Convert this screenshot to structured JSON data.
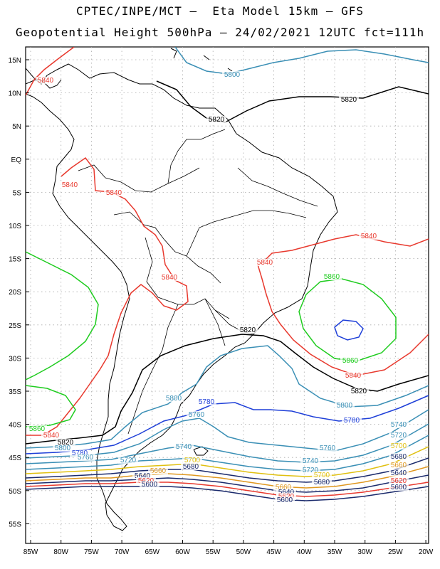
{
  "title_line1": "CPTEC/INPE/MCT –  Eta Model 15km – GFS",
  "title_line2": "Geopotential Height 500hPa – 24/02/2021 12UTC fct=111h",
  "lat_labels": [
    "15N",
    "10N",
    "5N",
    "EQ",
    "5S",
    "10S",
    "15S",
    "20S",
    "25S",
    "30S",
    "35S",
    "40S",
    "45S",
    "50S",
    "55S"
  ],
  "lon_labels": [
    "85W",
    "80W",
    "75W",
    "70W",
    "65W",
    "60W",
    "55W",
    "50W",
    "45W",
    "40W",
    "35W",
    "30W",
    "25W",
    "20W"
  ],
  "contour_labels": [
    {
      "text": "5840",
      "color": "#e8392e"
    },
    {
      "text": "5800",
      "color": "#3a8fb5"
    },
    {
      "text": "5820",
      "color": "#000000"
    },
    {
      "text": "5820",
      "color": "#000000"
    },
    {
      "text": "5840",
      "color": "#e8392e"
    },
    {
      "text": "5840",
      "color": "#e8392e"
    },
    {
      "text": "5840",
      "color": "#e8392e"
    },
    {
      "text": "5840",
      "color": "#e8392e"
    },
    {
      "text": "5840",
      "color": "#e8392e"
    },
    {
      "text": "5860",
      "color": "#1fcc1f"
    },
    {
      "text": "5820",
      "color": "#000000"
    },
    {
      "text": "5860",
      "color": "#1fcc1f"
    },
    {
      "text": "5840",
      "color": "#e8392e"
    },
    {
      "text": "5820",
      "color": "#000000"
    },
    {
      "text": "5800",
      "color": "#3a8fb5"
    },
    {
      "text": "5780",
      "color": "#1e3fd8"
    },
    {
      "text": "5800",
      "color": "#3a8fb5"
    },
    {
      "text": "5780",
      "color": "#1e3fd8"
    },
    {
      "text": "5760",
      "color": "#3a8fb5"
    },
    {
      "text": "5760",
      "color": "#3a8fb5"
    },
    {
      "text": "5860",
      "color": "#1fcc1f"
    },
    {
      "text": "5840",
      "color": "#e8392e"
    },
    {
      "text": "5820",
      "color": "#000000"
    },
    {
      "text": "5800",
      "color": "#3a8fb5"
    },
    {
      "text": "5780",
      "color": "#1e3fd8"
    },
    {
      "text": "5760",
      "color": "#3a8fb5"
    },
    {
      "text": "5740",
      "color": "#3a8fb5"
    },
    {
      "text": "5720",
      "color": "#3a8fb5"
    },
    {
      "text": "5700",
      "color": "#e0c010"
    },
    {
      "text": "5680",
      "color": "#1a2a6c"
    },
    {
      "text": "5660",
      "color": "#e09820"
    },
    {
      "text": "5640",
      "color": "#1a2a6c"
    },
    {
      "text": "5620",
      "color": "#e8392e"
    },
    {
      "text": "5600",
      "color": "#1a2a6c"
    },
    {
      "text": "5740",
      "color": "#3a8fb5"
    },
    {
      "text": "5720",
      "color": "#3a8fb5"
    },
    {
      "text": "5700",
      "color": "#e0c010"
    },
    {
      "text": "5680",
      "color": "#1a2a6c"
    },
    {
      "text": "5660",
      "color": "#e09820"
    },
    {
      "text": "5640",
      "color": "#1a2a6c"
    },
    {
      "text": "5620",
      "color": "#e8392e"
    },
    {
      "text": "5600",
      "color": "#1a2a6c"
    },
    {
      "text": "5740",
      "color": "#3a8fb5"
    },
    {
      "text": "5720",
      "color": "#3a8fb5"
    },
    {
      "text": "5700",
      "color": "#e0c010"
    },
    {
      "text": "5680",
      "color": "#1a2a6c"
    },
    {
      "text": "5660",
      "color": "#e09820"
    },
    {
      "text": "5640",
      "color": "#1a2a6c"
    },
    {
      "text": "5620",
      "color": "#e8392e"
    },
    {
      "text": "5600",
      "color": "#1a2a6c"
    }
  ]
}
